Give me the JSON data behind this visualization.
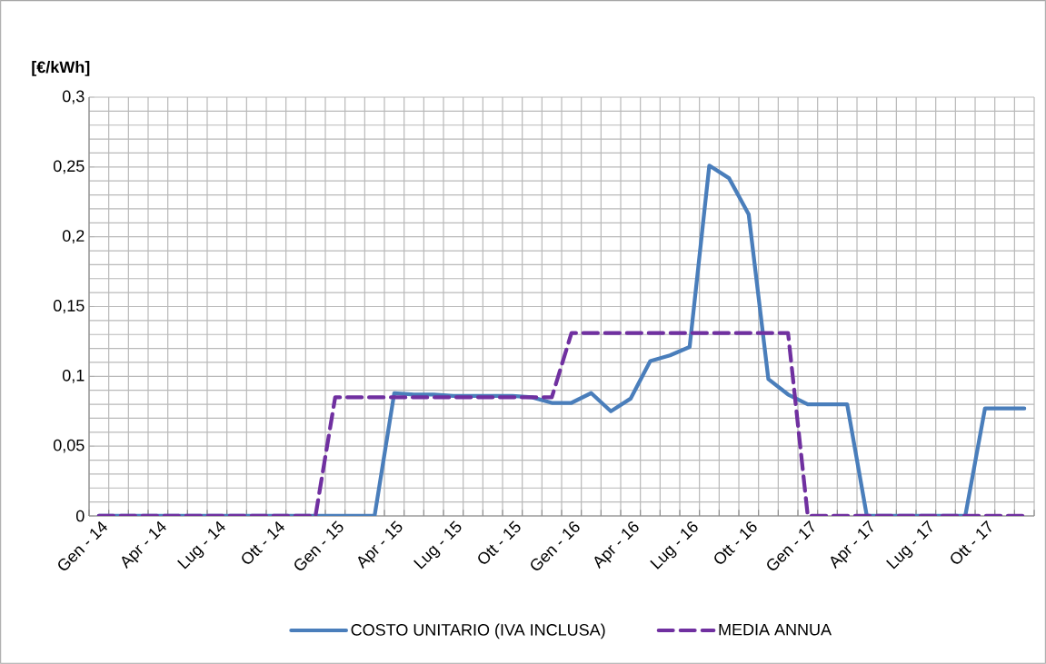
{
  "chart_data": {
    "type": "line",
    "ylabel": "[€/kWh]",
    "categories": [
      "Gen - 14",
      null,
      null,
      "Apr - 14",
      null,
      null,
      "Lug - 14",
      null,
      null,
      "Ott - 14",
      null,
      null,
      "Gen - 15",
      null,
      null,
      "Apr - 15",
      null,
      null,
      "Lug - 15",
      null,
      null,
      "Ott - 15",
      null,
      null,
      "Gen - 16",
      null,
      null,
      "Apr - 16",
      null,
      null,
      "Lug - 16",
      null,
      null,
      "Ott - 16",
      null,
      null,
      "Gen - 17",
      null,
      null,
      "Apr - 17",
      null,
      null,
      "Lug - 17",
      null,
      null,
      "Ott - 17",
      null,
      null
    ],
    "ylim": [
      0,
      0.3
    ],
    "yticks": [
      0,
      {
        "value": 0.05,
        "label": "0,05"
      },
      {
        "value": 0.1,
        "label": "0,1"
      },
      {
        "value": 0.15,
        "label": "0,15"
      },
      {
        "value": 0.2,
        "label": "0,2"
      },
      {
        "value": 0.25,
        "label": "0,25"
      },
      {
        "value": 0.3,
        "label": "0,3"
      }
    ],
    "grid": true,
    "legend": "bottom",
    "marker": "none",
    "series": [
      {
        "name": "COSTO UNITARIO (IVA INCLUSA)",
        "color": "#4a7ebb",
        "line_style": "solid",
        "values": [
          0,
          0,
          0,
          0,
          0,
          0,
          0,
          0,
          0,
          0,
          0,
          0,
          0,
          0,
          0,
          0.088,
          0.087,
          0.087,
          0.086,
          0.086,
          0.086,
          0.086,
          0.085,
          0.081,
          0.081,
          0.088,
          0.075,
          0.084,
          0.111,
          0.115,
          0.121,
          0.251,
          0.242,
          0.216,
          0.098,
          0.087,
          0.08,
          0.08,
          0.08,
          0,
          0,
          0,
          0,
          0,
          0,
          0.077,
          0.077,
          0.077
        ]
      },
      {
        "name": "MEDIA ANNUA",
        "color": "#7030a0",
        "line_style": "dashed",
        "values": [
          0,
          0,
          0,
          0,
          0,
          0,
          0,
          0,
          0,
          0,
          0,
          0,
          0.085,
          0.085,
          0.085,
          0.085,
          0.085,
          0.085,
          0.085,
          0.085,
          0.085,
          0.085,
          0.085,
          0.085,
          0.131,
          0.131,
          0.131,
          0.131,
          0.131,
          0.131,
          0.131,
          0.131,
          0.131,
          0.131,
          0.131,
          0.131,
          0,
          0,
          0,
          0,
          0,
          0,
          0,
          0,
          0,
          0,
          0,
          0
        ]
      }
    ]
  }
}
